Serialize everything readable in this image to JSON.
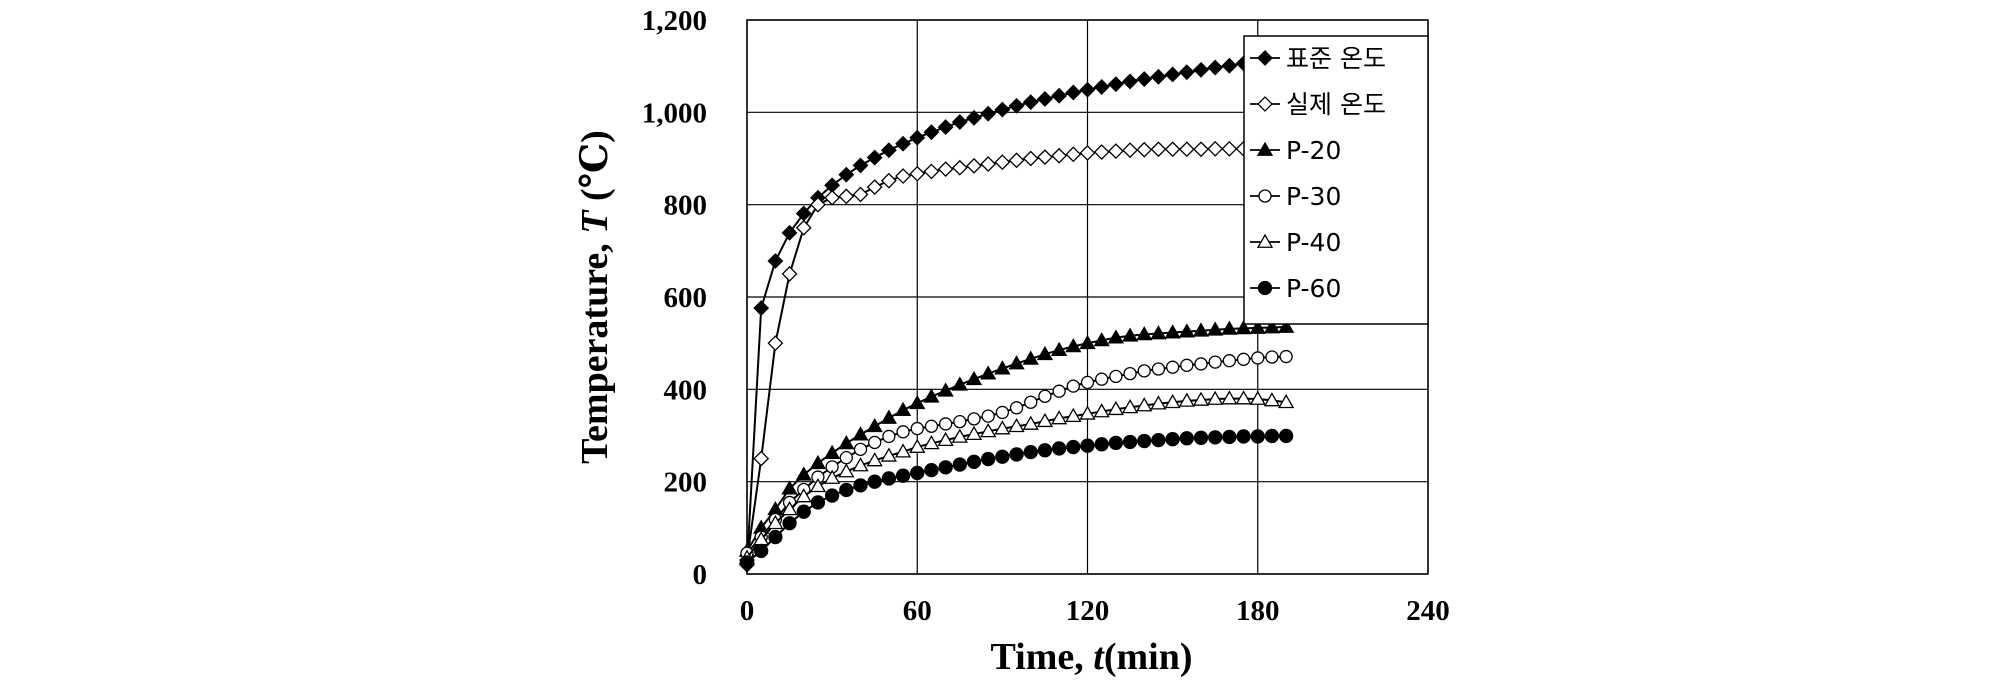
{
  "chart_data": {
    "type": "line",
    "xlabel": {
      "prefix": "Time, ",
      "var": "t",
      "suffix": "(min)"
    },
    "ylabel": {
      "prefix": "Temperature, ",
      "var": "T",
      "suffix": " (℃)"
    },
    "xlim": [
      0,
      240
    ],
    "ylim": [
      0,
      1200
    ],
    "xticks": [
      0,
      60,
      120,
      180,
      240
    ],
    "xtick_labels": [
      "0",
      "60",
      "120",
      "180",
      "240"
    ],
    "yticks": [
      0,
      200,
      400,
      600,
      800,
      1000,
      1200
    ],
    "ytick_labels": [
      "0",
      "200",
      "400",
      "600",
      "800",
      "1,000",
      "1,200"
    ],
    "grid": true,
    "legend_position": "top-right",
    "x": [
      0,
      5,
      10,
      15,
      20,
      25,
      30,
      35,
      40,
      45,
      50,
      55,
      60,
      65,
      70,
      75,
      80,
      85,
      90,
      95,
      100,
      105,
      110,
      115,
      120,
      125,
      130,
      135,
      140,
      145,
      150,
      155,
      160,
      165,
      170,
      175,
      180,
      185,
      190
    ],
    "series": [
      {
        "name": "표준 온도",
        "marker": "diamond-filled",
        "values": [
          20,
          576,
          678,
          739,
          781,
          815,
          842,
          865,
          885,
          902,
          918,
          932,
          945,
          957,
          968,
          979,
          988,
          997,
          1006,
          1014,
          1022,
          1029,
          1036,
          1043,
          1049,
          1055,
          1061,
          1067,
          1072,
          1077,
          1082,
          1087,
          1092,
          1097,
          1101,
          1106,
          1110,
          1114,
          1118
        ]
      },
      {
        "name": "실제 온도",
        "marker": "diamond-open",
        "values": [
          30,
          250,
          500,
          650,
          750,
          800,
          815,
          818,
          822,
          838,
          852,
          862,
          867,
          872,
          877,
          880,
          884,
          888,
          892,
          896,
          900,
          903,
          906,
          909,
          912,
          914,
          916,
          918,
          919,
          920,
          920,
          920,
          920,
          921,
          921,
          921,
          921,
          922,
          922
        ]
      },
      {
        "name": "P-20",
        "marker": "triangle-filled",
        "values": [
          50,
          100,
          140,
          185,
          215,
          240,
          262,
          283,
          302,
          320,
          338,
          355,
          370,
          384,
          397,
          410,
          422,
          434,
          445,
          456,
          466,
          476,
          485,
          493,
          500,
          506,
          512,
          516,
          519,
          521,
          523,
          525,
          527,
          529,
          531,
          532,
          533,
          534,
          535
        ]
      },
      {
        "name": "P-30",
        "marker": "circle-open",
        "values": [
          45,
          80,
          118,
          155,
          183,
          210,
          232,
          252,
          270,
          285,
          298,
          308,
          315,
          320,
          325,
          330,
          336,
          342,
          350,
          360,
          372,
          385,
          396,
          407,
          415,
          422,
          428,
          434,
          440,
          444,
          448,
          452,
          455,
          459,
          462,
          465,
          468,
          470,
          471
        ]
      },
      {
        "name": "P-40",
        "marker": "triangle-open",
        "values": [
          35,
          75,
          110,
          140,
          168,
          190,
          208,
          222,
          235,
          246,
          256,
          265,
          275,
          283,
          290,
          297,
          303,
          309,
          315,
          320,
          325,
          331,
          337,
          342,
          347,
          352,
          357,
          361,
          365,
          369,
          372,
          375,
          377,
          379,
          380,
          380,
          379,
          376,
          372
        ]
      },
      {
        "name": "P-60",
        "marker": "circle-filled",
        "values": [
          25,
          50,
          80,
          110,
          135,
          155,
          170,
          182,
          192,
          200,
          207,
          213,
          219,
          225,
          231,
          237,
          243,
          249,
          254,
          259,
          264,
          268,
          272,
          275,
          278,
          281,
          284,
          286,
          288,
          290,
          292,
          294,
          295,
          296,
          297,
          298,
          298,
          299,
          299
        ]
      }
    ]
  }
}
